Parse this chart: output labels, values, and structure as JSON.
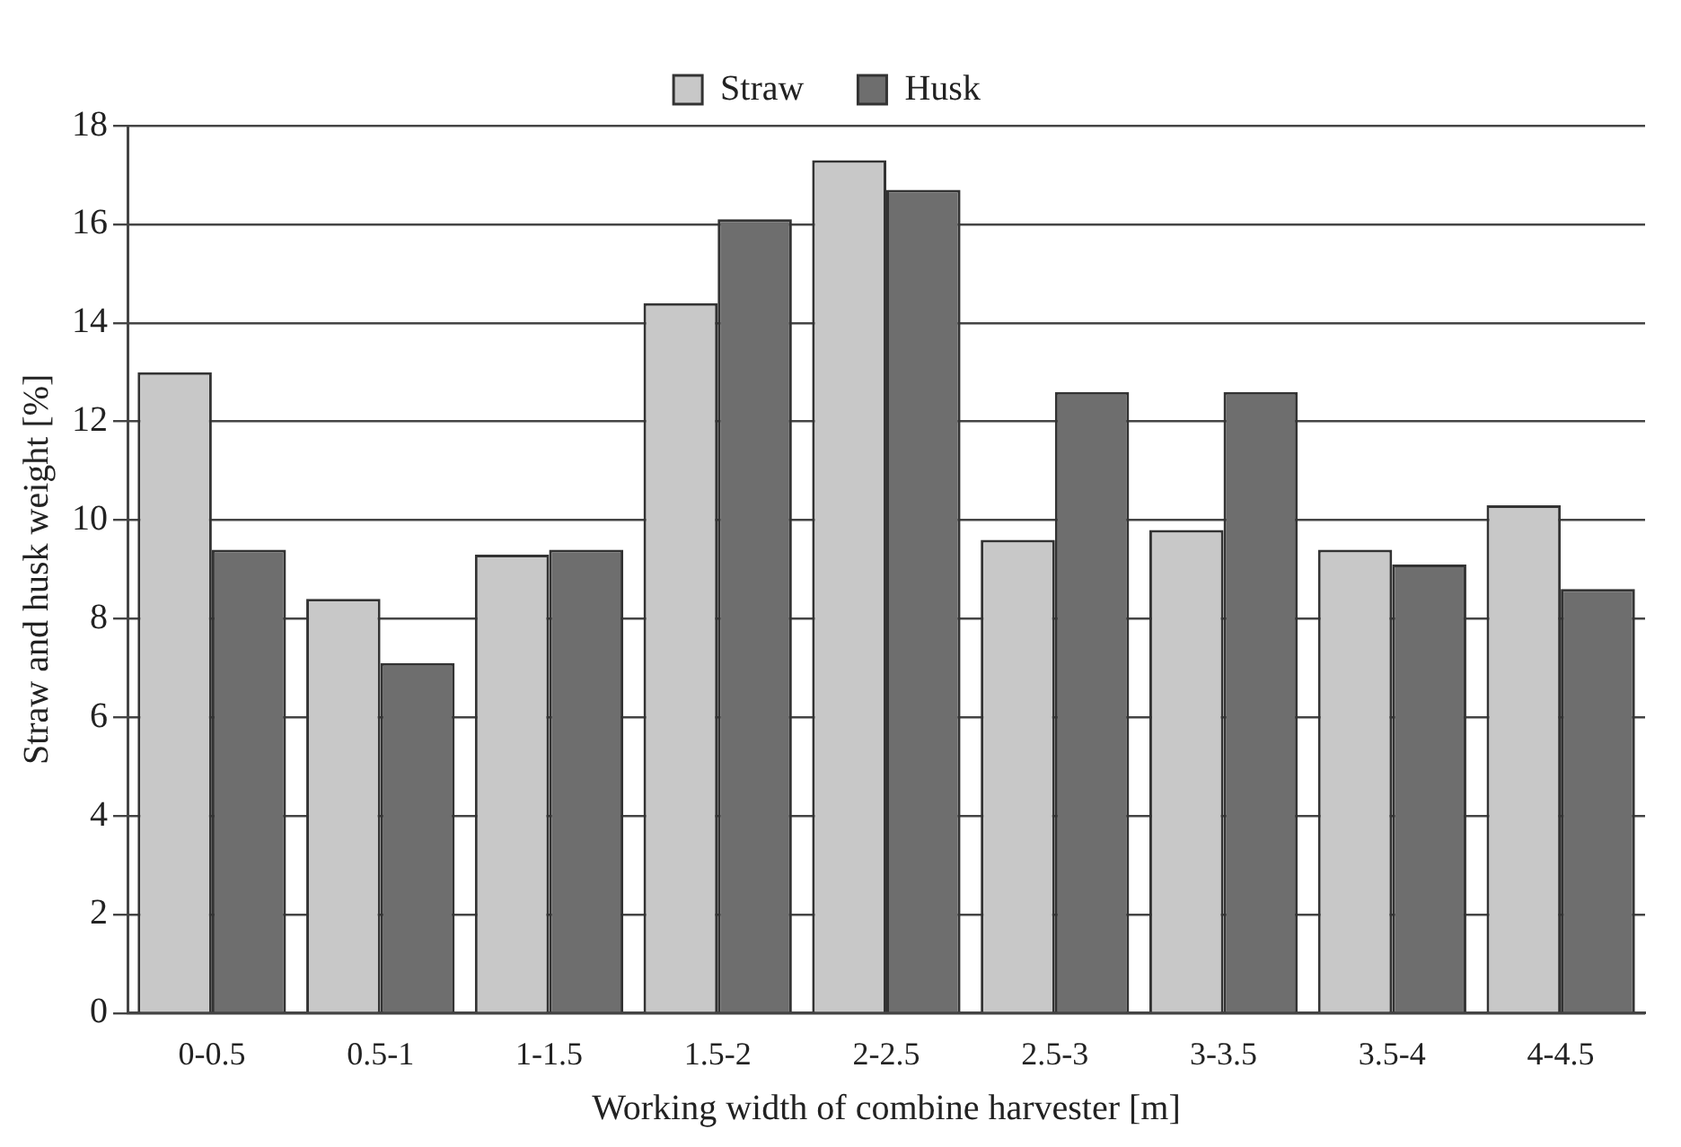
{
  "chart_data": {
    "type": "bar",
    "xlabel": "Working width of combine harvester [m]",
    "ylabel": "Straw and husk weight [%]",
    "categories": [
      "0-0.5",
      "0.5-1",
      "1-1.5",
      "1.5-2",
      "2-2.5",
      "2.5-3",
      "3-3.5",
      "3.5-4",
      "4-4.5"
    ],
    "series": [
      {
        "name": "Straw",
        "color": "#c8c8c8",
        "values": [
          13,
          8.4,
          9.3,
          14.4,
          17.3,
          9.6,
          9.8,
          9.4,
          10.3
        ]
      },
      {
        "name": "Husk",
        "color": "#6e6e6e",
        "values": [
          9.4,
          7.1,
          9.4,
          16.1,
          16.7,
          12.6,
          12.6,
          9.1,
          8.6
        ]
      }
    ],
    "ylim": [
      0,
      18
    ],
    "yticks": [
      0,
      2,
      4,
      6,
      8,
      10,
      12,
      14,
      16,
      18
    ],
    "grid": "y",
    "legend": "top"
  }
}
